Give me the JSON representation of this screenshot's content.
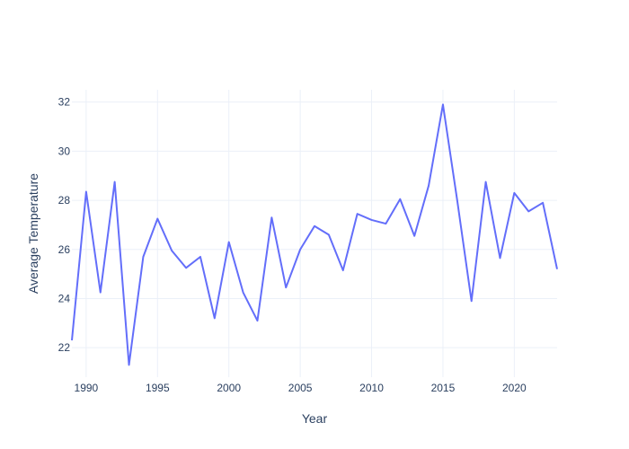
{
  "chart_data": {
    "type": "line",
    "title": "",
    "xlabel": "Year",
    "ylabel": "Average Temperature",
    "xlim": [
      1989,
      2023
    ],
    "ylim": [
      20.8,
      32.5
    ],
    "xticks": [
      1990,
      1995,
      2000,
      2005,
      2010,
      2015,
      2020
    ],
    "yticks": [
      22,
      24,
      26,
      28,
      30,
      32
    ],
    "grid": true,
    "legend": "none",
    "series": [
      {
        "line_color": "#636efa",
        "x": [
          1989,
          1990,
          1991,
          1992,
          1993,
          1994,
          1995,
          1996,
          1997,
          1998,
          1999,
          2000,
          2001,
          2002,
          2003,
          2004,
          2005,
          2006,
          2007,
          2008,
          2009,
          2010,
          2011,
          2012,
          2013,
          2014,
          2015,
          2016,
          2017,
          2018,
          2019,
          2020,
          2021,
          2022,
          2023
        ],
        "y": [
          22.3,
          28.35,
          24.25,
          28.75,
          21.3,
          25.7,
          27.25,
          25.95,
          25.25,
          25.7,
          23.2,
          26.3,
          24.25,
          23.1,
          27.3,
          24.45,
          26.0,
          26.95,
          26.6,
          25.15,
          27.45,
          27.2,
          27.05,
          28.05,
          26.55,
          28.6,
          31.9,
          28.0,
          23.9,
          28.75,
          25.65,
          28.3,
          27.55,
          27.9,
          25.2
        ]
      }
    ]
  }
}
